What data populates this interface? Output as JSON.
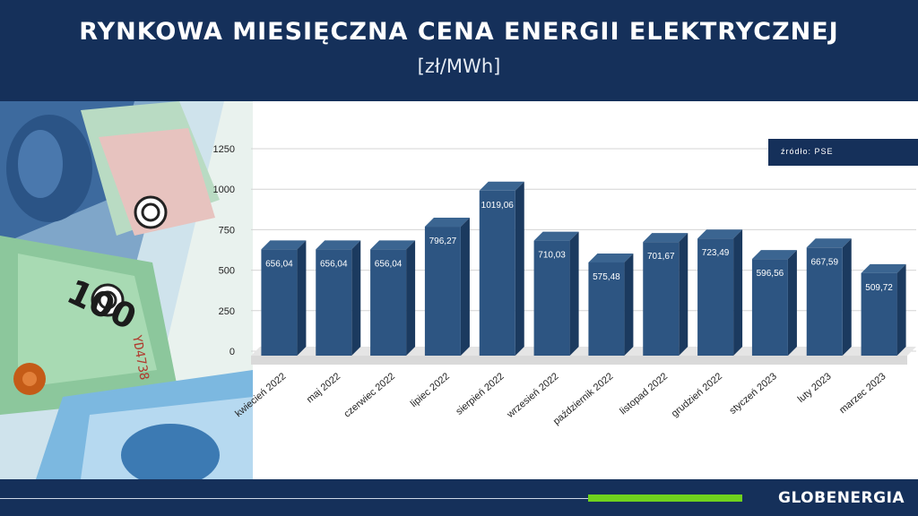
{
  "header": {
    "title": "RYNKOWA MIESIĘCZNA CENA ENERGII ELEKTRYCZNEJ",
    "subtitle": "[zł/MWh]"
  },
  "source": "źródło:  PSE",
  "brand": "GLOBENERGIA",
  "colors": {
    "header_bg": "#15305a",
    "bar_front": "#2d5582",
    "bar_top": "#3b6591",
    "bar_side": "#1b3a5f",
    "accent": "#6fd21d"
  },
  "money_image": {
    "banknote_label": "100",
    "serial": "YD4738"
  },
  "chart_data": {
    "type": "bar",
    "categories": [
      "kwiecień 2022",
      "maj 2022",
      "czerwiec 2022",
      "lipiec 2022",
      "sierpień 2022",
      "wrzesień 2022",
      "październik 2022",
      "listopad 2022",
      "grudzień 2022",
      "styczeń 2023",
      "luty 2023",
      "marzec 2023"
    ],
    "values": [
      656.04,
      656.04,
      656.04,
      796.27,
      1019.06,
      710.03,
      575.48,
      701.67,
      723.49,
      596.56,
      667.59,
      509.72
    ],
    "value_labels": [
      "656,04",
      "656,04",
      "656,04",
      "796,27",
      "1019,06",
      "710,03",
      "575,48",
      "701,67",
      "723,49",
      "596,56",
      "667,59",
      "509,72"
    ],
    "yticks": [
      0,
      250,
      500,
      750,
      1000,
      1250
    ],
    "ylim": [
      0,
      1250
    ],
    "grid": true,
    "style": "3d-column"
  }
}
